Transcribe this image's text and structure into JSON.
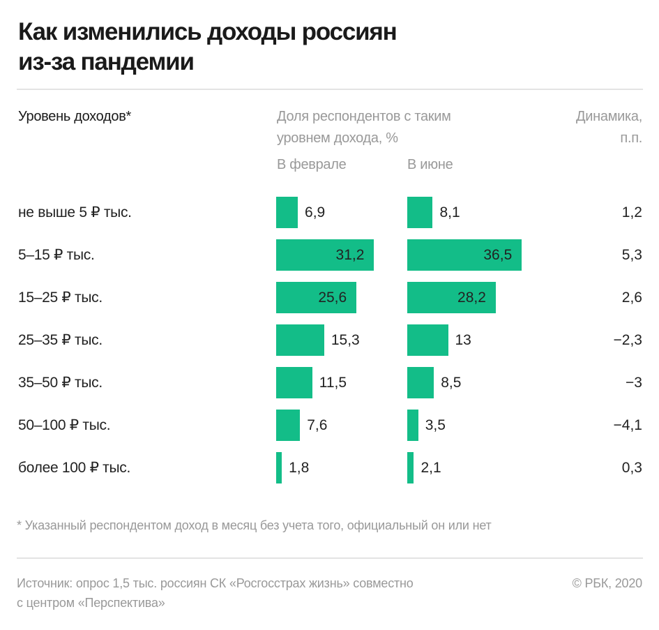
{
  "title_line1": "Как изменились доходы россиян",
  "title_line2": "из-за пандемии",
  "header": {
    "income_level": "Уровень доходов*",
    "share_line1": "Доля респондентов с таким",
    "share_line2": "уровнем дохода, %",
    "february": "В феврале",
    "june": "В июне",
    "dynamics_line1": "Динамика,",
    "dynamics_line2": "п.п."
  },
  "chart_data": {
    "type": "bar",
    "orientation": "horizontal",
    "categories": [
      "не выше 5 ₽ тыс.",
      "5–15 ₽ тыс.",
      "15–25 ₽ тыс.",
      "25–35 ₽ тыс.",
      "35–50 ₽ тыс.",
      "50–100 ₽ тыс.",
      "более 100 ₽ тыс."
    ],
    "series": [
      {
        "name": "В феврале",
        "values": [
          6.9,
          31.2,
          25.6,
          15.3,
          11.5,
          7.6,
          1.8
        ],
        "labels": [
          "6,9",
          "31,2",
          "25,6",
          "15,3",
          "11,5",
          "7,6",
          "1,8"
        ]
      },
      {
        "name": "В июне",
        "values": [
          8.1,
          36.5,
          28.2,
          13,
          8.5,
          3.5,
          2.1
        ],
        "labels": [
          "8,1",
          "36,5",
          "28,2",
          "13",
          "8,5",
          "3,5",
          "2,1"
        ]
      }
    ],
    "dynamics": [
      1.2,
      5.3,
      2.6,
      -2.3,
      -3,
      -4.1,
      0.3
    ],
    "dynamics_labels": [
      "1,2",
      "5,3",
      "2,6",
      "−2,3",
      "−3",
      "−4,1",
      "0,3"
    ],
    "bar_color": "#13bd88",
    "grid": false
  },
  "footnote": "* Указанный респондентом доход в месяц без учета того, официальный он или нет",
  "source_line1": "Источник: опрос 1,5 тыс. россиян СК «Росгосстрах жизнь» совместно",
  "source_line2": "с центром «Перспектива»",
  "copyright": "© РБК, 2020"
}
